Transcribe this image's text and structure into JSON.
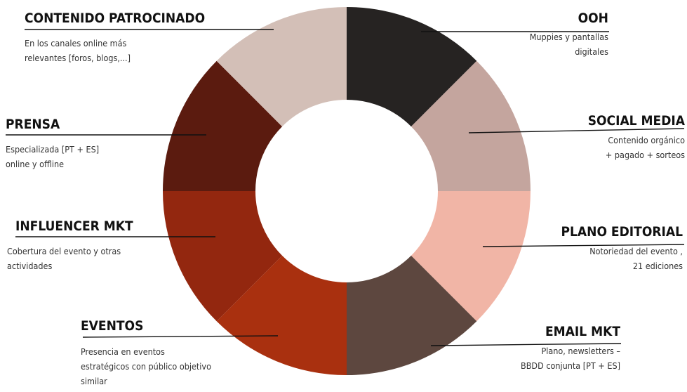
{
  "colors": {
    "background": "#ffffff",
    "text": "#222222",
    "leader_line": "#111111",
    "segments": [
      "#262322",
      "#c4a59e",
      "#f1b5a6",
      "#5d473f",
      "#a9300f",
      "#93270f",
      "#5b1b0f",
      "#d3bfb7"
    ]
  },
  "segments": [
    {
      "key": "ooh",
      "title": "OOH",
      "desc_lines": [
        "Muppies y pantallas",
        "digitales"
      ],
      "color": "#262322"
    },
    {
      "key": "social-media",
      "title": "SOCIAL MEDIA",
      "desc_lines": [
        "Contenido orgánico",
        "+ pagado + sorteos"
      ],
      "color": "#c4a59e"
    },
    {
      "key": "plano-editorial",
      "title": "PLANO EDITORIAL",
      "desc_lines": [
        "Notoriedad del evento ,",
        "21 ediciones"
      ],
      "color": "#f1b5a6"
    },
    {
      "key": "email-mkt",
      "title": "EMAIL MKT",
      "desc_lines": [
        "Plano, newsletters –",
        "BBDD conjunta [PT + ES]"
      ],
      "color": "#5d473f"
    },
    {
      "key": "eventos",
      "title": "EVENTOS",
      "desc_lines": [
        "Presencia en eventos",
        "estratégicos con público objetivo",
        "similar"
      ],
      "color": "#a9300f"
    },
    {
      "key": "influencer-mkt",
      "title": "INFLUENCER MKT",
      "desc_lines": [
        "Cobertura del evento y otras",
        "actividades"
      ],
      "color": "#93270f"
    },
    {
      "key": "prensa",
      "title": "PRENSA",
      "desc_lines": [
        "Especializada [PT + ES]",
        "online y offline"
      ],
      "color": "#5b1b0f"
    },
    {
      "key": "contenido-patrocinado",
      "title": "CONTENIDO PATROCINADO",
      "desc_lines": [
        "En los canales online más",
        "relevantes [foros, blogs,...]"
      ],
      "color": "#d3bfb7"
    }
  ]
}
